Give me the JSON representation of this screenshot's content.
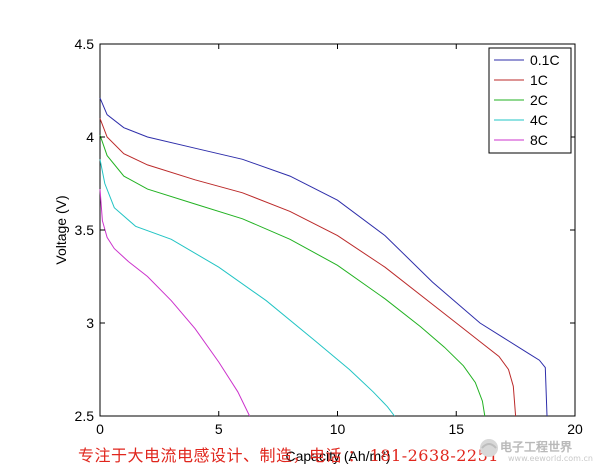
{
  "chart_data": {
    "type": "line",
    "title": "",
    "xlabel": "Capacity (Ah/m²)",
    "ylabel": "Voltage (V)",
    "xlim": [
      0,
      20
    ],
    "ylim": [
      2.5,
      4.5
    ],
    "xticks": [
      "0",
      "5",
      "10",
      "15",
      "20"
    ],
    "yticks": [
      "2.5",
      "3",
      "3.5",
      "4",
      "4.5"
    ],
    "grid": false,
    "legend_position": "top-right",
    "series": [
      {
        "name": "0.1C",
        "color": "#2e2eaa",
        "x": [
          0,
          0.3,
          1,
          2,
          4,
          6,
          8,
          10,
          12,
          14,
          16,
          17,
          18,
          18.5,
          18.75,
          18.82
        ],
        "y": [
          4.21,
          4.12,
          4.05,
          4.0,
          3.94,
          3.88,
          3.79,
          3.66,
          3.47,
          3.22,
          3.0,
          2.92,
          2.84,
          2.8,
          2.76,
          2.5
        ]
      },
      {
        "name": "1C",
        "color": "#bb2a2a",
        "x": [
          0,
          0.3,
          1,
          2,
          4,
          6,
          8,
          10,
          12,
          14,
          15,
          16,
          16.8,
          17.2,
          17.4,
          17.5
        ],
        "y": [
          4.1,
          4.0,
          3.91,
          3.85,
          3.77,
          3.7,
          3.6,
          3.47,
          3.3,
          3.1,
          3.0,
          2.9,
          2.82,
          2.75,
          2.66,
          2.5
        ]
      },
      {
        "name": "2C",
        "color": "#22b222",
        "x": [
          0,
          0.3,
          1,
          2,
          4,
          6,
          8,
          10,
          12,
          13.5,
          14.5,
          15.3,
          15.8,
          16.1,
          16.2
        ],
        "y": [
          4.01,
          3.9,
          3.79,
          3.72,
          3.64,
          3.56,
          3.45,
          3.31,
          3.13,
          2.98,
          2.87,
          2.77,
          2.68,
          2.58,
          2.5
        ]
      },
      {
        "name": "4C",
        "color": "#22c4c4",
        "x": [
          0,
          0.2,
          0.6,
          1.5,
          3,
          5,
          7,
          9,
          10.5,
          11.5,
          12.1,
          12.4
        ],
        "y": [
          3.88,
          3.75,
          3.62,
          3.52,
          3.45,
          3.3,
          3.12,
          2.91,
          2.75,
          2.63,
          2.55,
          2.5
        ]
      },
      {
        "name": "8C",
        "color": "#cc33cc",
        "x": [
          0,
          0.1,
          0.3,
          0.6,
          1.2,
          2,
          3,
          4,
          5,
          5.8,
          6.3
        ],
        "y": [
          3.72,
          3.55,
          3.46,
          3.4,
          3.33,
          3.25,
          3.12,
          2.97,
          2.79,
          2.63,
          2.5
        ]
      }
    ]
  },
  "watermark": {
    "text": "专注于大电流电感设计、制造，电话 ： 181-2638-2251",
    "logo_text": "电子工程世界",
    "logo_sub": "www.eeworld.com.cn"
  }
}
